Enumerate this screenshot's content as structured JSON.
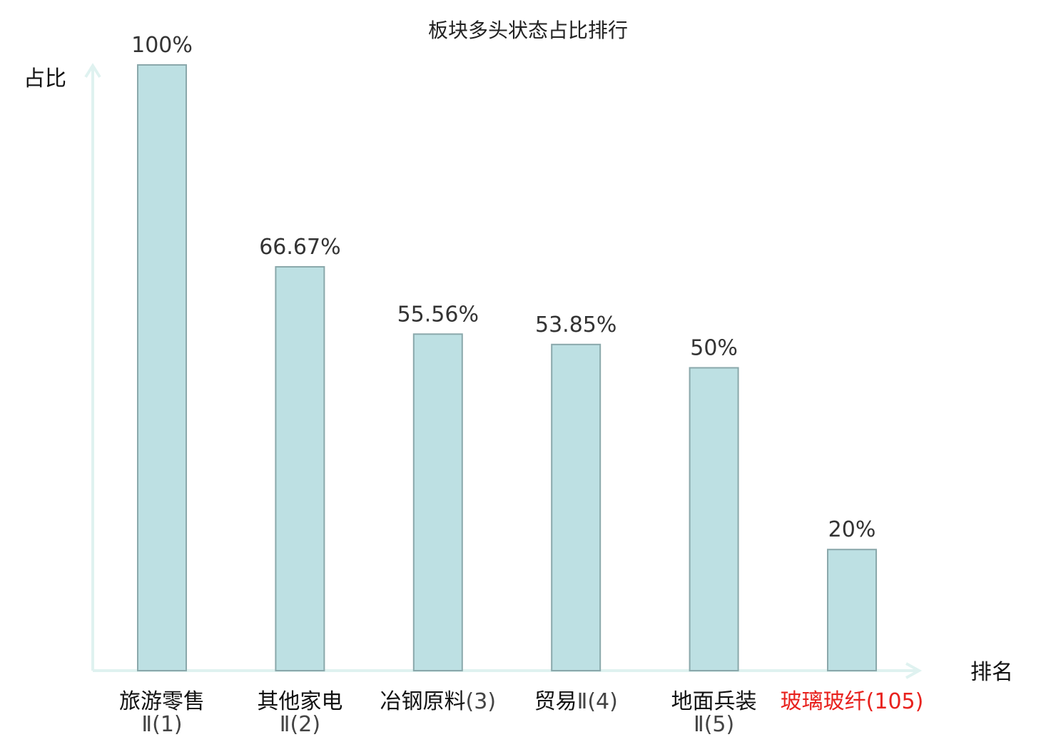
{
  "chart_data": {
    "type": "bar",
    "title": "板块多头状态占比排行",
    "ylabel": "占比",
    "xlabel": "排名",
    "ylim": [
      0,
      100
    ],
    "grid": false,
    "categories": [
      {
        "name": "旅游零售",
        "suffix": "Ⅱ",
        "rank": "(1)",
        "highlight": false
      },
      {
        "name": "其他家电",
        "suffix": "Ⅱ",
        "rank": "(2)",
        "highlight": false
      },
      {
        "name": "冶钢原料",
        "suffix": "",
        "rank": "(3)",
        "highlight": false
      },
      {
        "name": "贸易",
        "suffix": "Ⅱ",
        "rank": "(4)",
        "highlight": false
      },
      {
        "name": "地面兵装",
        "suffix": "Ⅱ",
        "rank": "(5)",
        "highlight": false
      },
      {
        "name": "玻璃玻纤",
        "suffix": "",
        "rank": "(105)",
        "highlight": true
      }
    ],
    "values": [
      100,
      66.67,
      55.56,
      53.85,
      50,
      20
    ],
    "value_labels": [
      "100%",
      "66.67%",
      "55.56%",
      "53.85%",
      "50%",
      "20%"
    ]
  },
  "colors": {
    "bar_fill": "#bde0e3",
    "bar_stroke": "#8aa8ab",
    "axis": "#dff2f0",
    "highlight_text": "#e8221e",
    "normal_text": "#111111",
    "rank_text": "#444444"
  }
}
